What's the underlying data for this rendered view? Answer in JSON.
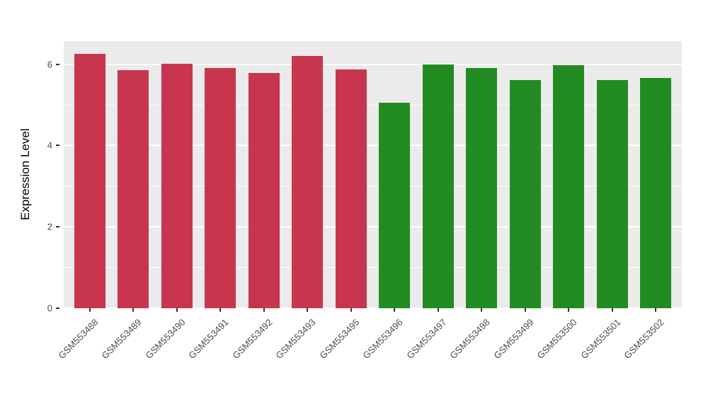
{
  "chart_data": {
    "type": "bar",
    "title": "",
    "xlabel": "",
    "ylabel": "Expression Level",
    "categories": [
      "GSM553488",
      "GSM553489",
      "GSM553490",
      "GSM553491",
      "GSM553492",
      "GSM553493",
      "GSM553495",
      "GSM553496",
      "GSM553497",
      "GSM553498",
      "GSM553499",
      "GSM553500",
      "GSM553501",
      "GSM553502"
    ],
    "values": [
      6.26,
      5.86,
      6.01,
      5.9,
      5.78,
      6.21,
      5.87,
      5.06,
      6.0,
      5.91,
      5.62,
      5.98,
      5.62,
      5.67
    ],
    "bar_colors": [
      "#C8354F",
      "#C8354F",
      "#C8354F",
      "#C8354F",
      "#C8354F",
      "#C8354F",
      "#C8354F",
      "#228B22",
      "#228B22",
      "#228B22",
      "#228B22",
      "#228B22",
      "#228B22",
      "#228B22"
    ],
    "group_colors": {
      "group1": "#C8354F",
      "group2": "#228B22"
    },
    "y_major_ticks": [
      0,
      2,
      4,
      6
    ],
    "y_minor_ticks": [
      1,
      3,
      5
    ],
    "ylim": [
      0,
      6.57
    ],
    "grid": "on",
    "legend_position": "none",
    "panel_background": "#EBEBEB",
    "gridline_color": "#FFFFFF"
  }
}
